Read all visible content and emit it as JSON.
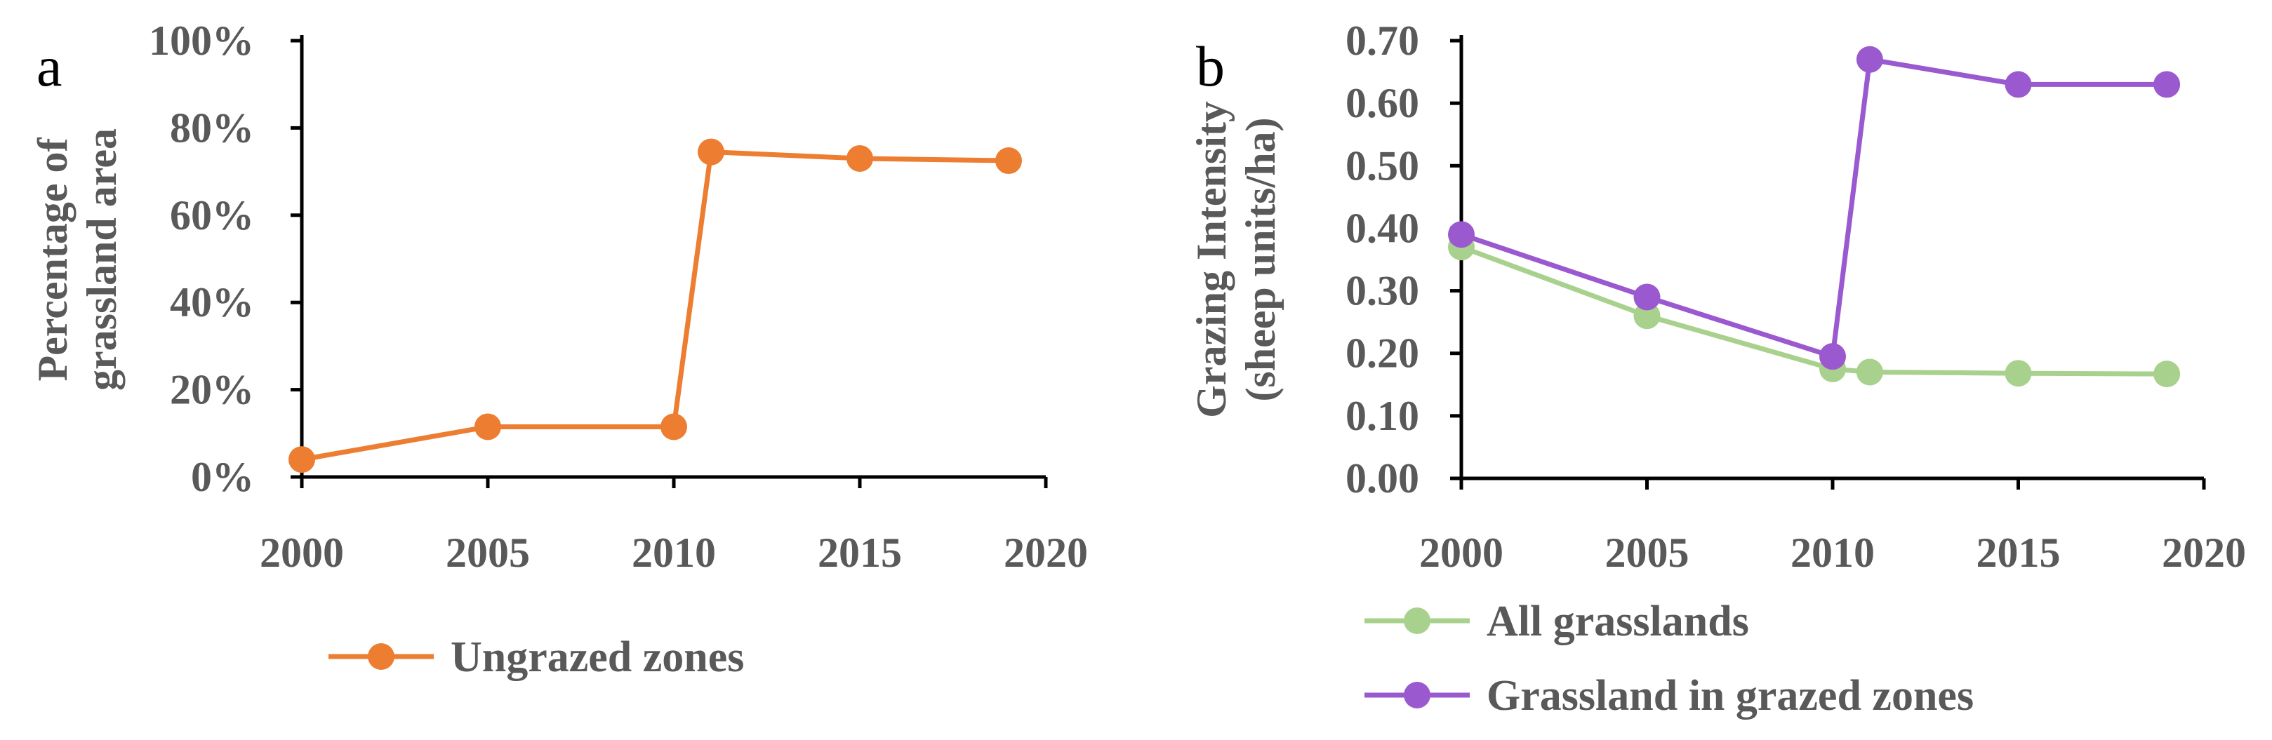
{
  "chart_data": [
    {
      "panel_label": "a",
      "type": "line",
      "title": "",
      "xlabel": "",
      "ylabel_lines": [
        "Percentage of",
        "grassland area"
      ],
      "xlim": [
        2000,
        2020
      ],
      "ylim": [
        0,
        1
      ],
      "x_ticks": [
        2000,
        2005,
        2010,
        2015,
        2020
      ],
      "x_tick_labels": [
        "2000",
        "2005",
        "2010",
        "2015",
        "2020"
      ],
      "y_ticks": [
        0,
        0.2,
        0.4,
        0.6,
        0.8,
        1.0
      ],
      "y_tick_labels": [
        "0%",
        "20%",
        "40%",
        "60%",
        "80%",
        "100%"
      ],
      "legend_position": "bottom",
      "series": [
        {
          "name": "Ungrazed zones",
          "color": "#ED7D31",
          "x": [
            2000,
            2005,
            2010,
            2011,
            2015,
            2019
          ],
          "values": [
            0.04,
            0.115,
            0.115,
            0.745,
            0.73,
            0.725
          ]
        }
      ]
    },
    {
      "panel_label": "b",
      "type": "line",
      "title": "",
      "xlabel": "",
      "ylabel_lines": [
        "Grazing Intensity",
        "(sheep units/ha)"
      ],
      "xlim": [
        2000,
        2020
      ],
      "ylim": [
        0,
        0.7
      ],
      "x_ticks": [
        2000,
        2005,
        2010,
        2015,
        2020
      ],
      "x_tick_labels": [
        "2000",
        "2005",
        "2010",
        "2015",
        "2020"
      ],
      "y_ticks": [
        0,
        0.1,
        0.2,
        0.3,
        0.4,
        0.5,
        0.6,
        0.7
      ],
      "y_tick_labels": [
        "0.00",
        "0.10",
        "0.20",
        "0.30",
        "0.40",
        "0.50",
        "0.60",
        "0.70"
      ],
      "legend_position": "bottom",
      "series": [
        {
          "name": "All grasslands",
          "color": "#A9D18E",
          "x": [
            2000,
            2005,
            2010,
            2011,
            2015,
            2019
          ],
          "values": [
            0.37,
            0.26,
            0.175,
            0.17,
            0.168,
            0.167
          ]
        },
        {
          "name": "Grassland in grazed zones",
          "color": "#9B59D0",
          "x": [
            2000,
            2005,
            2010,
            2011,
            2015,
            2019
          ],
          "values": [
            0.39,
            0.29,
            0.195,
            0.67,
            0.63,
            0.63
          ]
        }
      ]
    }
  ]
}
